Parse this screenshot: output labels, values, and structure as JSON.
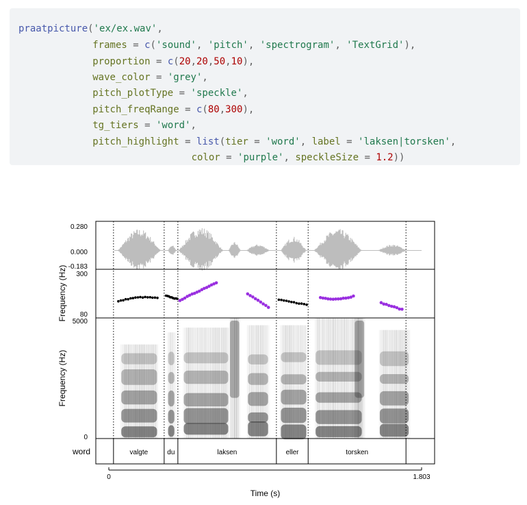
{
  "code": {
    "lines": [
      [
        [
          "fn",
          "praatpicture"
        ],
        [
          "op",
          "("
        ],
        [
          "str",
          "'ex/ex.wav'"
        ],
        [
          "op",
          ","
        ]
      ],
      [
        [
          "pad",
          "            "
        ],
        [
          "arg",
          "frames"
        ],
        [
          "op",
          " = "
        ],
        [
          "fn",
          "c"
        ],
        [
          "op",
          "("
        ],
        [
          "str",
          "'sound'"
        ],
        [
          "op",
          ", "
        ],
        [
          "str",
          "'pitch'"
        ],
        [
          "op",
          ", "
        ],
        [
          "str",
          "'spectrogram'"
        ],
        [
          "op",
          ", "
        ],
        [
          "str",
          "'TextGrid'"
        ],
        [
          "op",
          "),"
        ]
      ],
      [
        [
          "pad",
          "            "
        ],
        [
          "arg",
          "proportion"
        ],
        [
          "op",
          " = "
        ],
        [
          "fn",
          "c"
        ],
        [
          "op",
          "("
        ],
        [
          "num",
          "20"
        ],
        [
          "op",
          ","
        ],
        [
          "num",
          "20"
        ],
        [
          "op",
          ","
        ],
        [
          "num",
          "50"
        ],
        [
          "op",
          ","
        ],
        [
          "num",
          "10"
        ],
        [
          "op",
          "),"
        ]
      ],
      [
        [
          "pad",
          "            "
        ],
        [
          "arg",
          "wave_color"
        ],
        [
          "op",
          " = "
        ],
        [
          "str",
          "'grey'"
        ],
        [
          "op",
          ","
        ]
      ],
      [
        [
          "pad",
          "            "
        ],
        [
          "arg",
          "pitch_plotType"
        ],
        [
          "op",
          " = "
        ],
        [
          "str",
          "'speckle'"
        ],
        [
          "op",
          ","
        ]
      ],
      [
        [
          "pad",
          "            "
        ],
        [
          "arg",
          "pitch_freqRange"
        ],
        [
          "op",
          " = "
        ],
        [
          "fn",
          "c"
        ],
        [
          "op",
          "("
        ],
        [
          "num",
          "80"
        ],
        [
          "op",
          ","
        ],
        [
          "num",
          "300"
        ],
        [
          "op",
          "),"
        ]
      ],
      [
        [
          "pad",
          "            "
        ],
        [
          "arg",
          "tg_tiers"
        ],
        [
          "op",
          " = "
        ],
        [
          "str",
          "'word'"
        ],
        [
          "op",
          ","
        ]
      ],
      [
        [
          "pad",
          "            "
        ],
        [
          "arg",
          "pitch_highlight"
        ],
        [
          "op",
          " = "
        ],
        [
          "fn",
          "list"
        ],
        [
          "op",
          "("
        ],
        [
          "arg",
          "tier"
        ],
        [
          "op",
          " = "
        ],
        [
          "str",
          "'word'"
        ],
        [
          "op",
          ", "
        ],
        [
          "arg",
          "label"
        ],
        [
          "op",
          " = "
        ],
        [
          "str",
          "'laksen|torsken'"
        ],
        [
          "op",
          ","
        ]
      ],
      [
        [
          "pad",
          "                            "
        ],
        [
          "arg",
          "color"
        ],
        [
          "op",
          " = "
        ],
        [
          "str",
          "'purple'"
        ],
        [
          "op",
          ", "
        ],
        [
          "arg",
          "speckleSize"
        ],
        [
          "op",
          " = "
        ],
        [
          "num",
          "1.2"
        ],
        [
          "op",
          "))"
        ]
      ]
    ]
  },
  "figure": {
    "colors": {
      "wave": "#bdbdbd",
      "pitch_default": "#000000",
      "pitch_highlight": "#9a30e0",
      "spectrogram": "#2a2a2a"
    },
    "time_axis": {
      "title": "Time (s)",
      "min": 0,
      "max": 1.803,
      "ticks": [
        "0",
        "1.803"
      ]
    },
    "sound_panel": {
      "ticks": [
        "0.280",
        "0.000",
        "-0.183"
      ],
      "y_max": 0.28,
      "y_min": -0.183
    },
    "pitch_panel": {
      "ylabel": "Frequency (Hz)",
      "ticks": [
        "300",
        "80"
      ],
      "freq_range": [
        80,
        300
      ]
    },
    "spectrogram_panel": {
      "ylabel": "Frequency (Hz)",
      "ticks": [
        "5000",
        "0"
      ],
      "freq_range": [
        0,
        5000
      ]
    },
    "textgrid_panel": {
      "tier_name": "word",
      "boundaries_s": [
        0.0,
        0.027,
        0.319,
        0.398,
        0.966,
        1.149,
        1.713,
        1.803
      ],
      "intervals": [
        {
          "label": "",
          "start": 0.0,
          "end": 0.027
        },
        {
          "label": "valgte",
          "start": 0.027,
          "end": 0.319
        },
        {
          "label": "du",
          "start": 0.319,
          "end": 0.398
        },
        {
          "label": "laksen",
          "start": 0.398,
          "end": 0.966
        },
        {
          "label": "eller",
          "start": 0.966,
          "end": 1.149
        },
        {
          "label": "torsken",
          "start": 1.149,
          "end": 1.713
        },
        {
          "label": "",
          "start": 1.713,
          "end": 1.803
        }
      ]
    },
    "sound_bursts": [
      {
        "start": 0.05,
        "end": 0.3,
        "peak": 0.25
      },
      {
        "start": 0.34,
        "end": 0.39,
        "peak": 0.06
      },
      {
        "start": 0.4,
        "end": 0.66,
        "peak": 0.27
      },
      {
        "start": 0.69,
        "end": 0.76,
        "peak": 0.1
      },
      {
        "start": 0.79,
        "end": 0.93,
        "peak": 0.07
      },
      {
        "start": 0.99,
        "end": 1.14,
        "peak": 0.16
      },
      {
        "start": 1.18,
        "end": 1.46,
        "peak": 0.25
      },
      {
        "start": 1.55,
        "end": 1.72,
        "peak": 0.07
      }
    ],
    "pitch_segments": [
      {
        "start": 0.055,
        "end": 0.28,
        "f_start": 155,
        "f_end": 170,
        "f_peak": 180,
        "highlight": false
      },
      {
        "start": 0.33,
        "end": 0.395,
        "f_start": 180,
        "f_end": 165,
        "f_peak": 180,
        "highlight": false
      },
      {
        "start": 0.41,
        "end": 0.62,
        "f_start": 160,
        "f_end": 240,
        "f_peak": 240,
        "highlight": true
      },
      {
        "start": 0.8,
        "end": 0.92,
        "f_start": 190,
        "f_end": 128,
        "f_peak": 190,
        "highlight": true
      },
      {
        "start": 0.98,
        "end": 1.14,
        "f_start": 162,
        "f_end": 140,
        "f_peak": 162,
        "highlight": false
      },
      {
        "start": 1.22,
        "end": 1.41,
        "f_start": 172,
        "f_end": 178,
        "f_peak": 163,
        "highlight": true
      },
      {
        "start": 1.57,
        "end": 1.69,
        "f_start": 148,
        "f_end": 118,
        "f_peak": 148,
        "highlight": true
      }
    ],
    "spectro_segments": [
      {
        "start": 0.06,
        "end": 0.29,
        "top": 3900,
        "kind": "voiced"
      },
      {
        "start": 0.33,
        "end": 0.39,
        "top": 4400,
        "kind": "voiced"
      },
      {
        "start": 0.42,
        "end": 0.7,
        "top": 4600,
        "kind": "voiced"
      },
      {
        "start": 0.69,
        "end": 0.76,
        "top": 5000,
        "kind": "fricative"
      },
      {
        "start": 0.79,
        "end": 0.93,
        "top": 4700,
        "kind": "voiced"
      },
      {
        "start": 0.98,
        "end": 1.15,
        "top": 4700,
        "kind": "voiced"
      },
      {
        "start": 1.18,
        "end": 1.47,
        "top": 5000,
        "kind": "voiced"
      },
      {
        "start": 1.41,
        "end": 1.48,
        "top": 5000,
        "kind": "fricative"
      },
      {
        "start": 1.55,
        "end": 1.74,
        "top": 4500,
        "kind": "voiced"
      }
    ]
  }
}
